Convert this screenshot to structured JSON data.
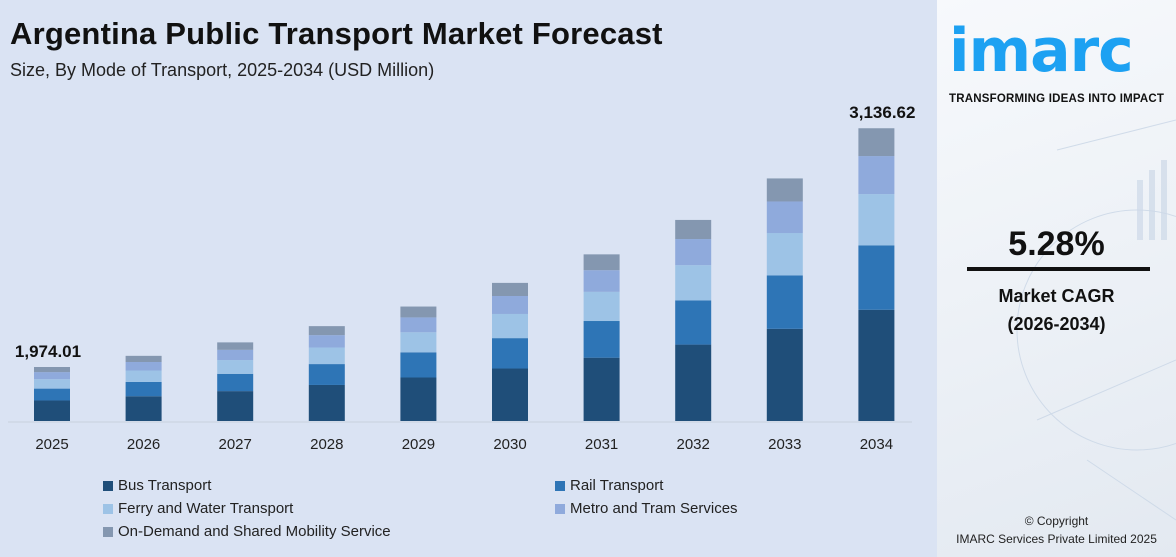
{
  "chart_data": {
    "type": "bar",
    "stacked": true,
    "title": "Argentina Public Transport Market Forecast",
    "subtitle": "Size, By Mode of Transport, 2025-2034 (USD Million)",
    "categories": [
      "2025",
      "2026",
      "2027",
      "2028",
      "2029",
      "2030",
      "2031",
      "2032",
      "2033",
      "2034"
    ],
    "series": [
      {
        "name": "Bus Transport",
        "color": "#1f4e79",
        "values": [
          750.1,
          789.7,
          831.4,
          875.3,
          921.5,
          970.2,
          1021.4,
          1075.4,
          1132.1,
          1191.9
        ]
      },
      {
        "name": "Rail Transport",
        "color": "#2e75b6",
        "values": [
          434.3,
          457.2,
          481.4,
          506.8,
          533.5,
          561.7,
          591.4,
          622.6,
          655.4,
          690.1
        ]
      },
      {
        "name": "Ferry and Water Transport",
        "color": "#9dc3e6",
        "values": [
          345.5,
          363.7,
          382.9,
          403.1,
          424.4,
          446.8,
          470.4,
          495.2,
          521.4,
          548.9
        ]
      },
      {
        "name": "Metro and Tram Services",
        "color": "#8faadc",
        "values": [
          256.6,
          270.2,
          284.4,
          299.5,
          315.3,
          331.9,
          349.4,
          367.9,
          387.3,
          407.8
        ]
      },
      {
        "name": "On-Demand and Shared Mobility Service",
        "color": "#8497b0",
        "values": [
          187.5,
          197.4,
          207.9,
          218.8,
          230.4,
          242.6,
          255.4,
          268.8,
          283.0,
          298.0
        ]
      }
    ],
    "data_labels": {
      "2025": "1,974.01",
      "2034": "3,136.62"
    },
    "grid": false,
    "legend_position": "bottom"
  },
  "side": {
    "logo": "imarc",
    "tagline": "TRANSFORMING IDEAS INTO IMPACT",
    "cagr_value": "5.28%",
    "cagr_label": "Market CAGR",
    "cagr_period": "(2026-2034)",
    "copyright": "© Copyright",
    "company": "IMARC Services Private Limited 2025",
    "brand_color": "#1da1f2"
  }
}
